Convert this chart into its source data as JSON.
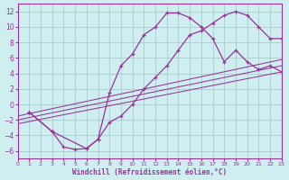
{
  "xlabel": "Windchill (Refroidissement éolien,°C)",
  "bg_color": "#ceeef0",
  "line_color": "#993399",
  "grid_color": "#aacccc",
  "xlim": [
    0,
    23
  ],
  "ylim": [
    -7,
    13
  ],
  "xticks": [
    0,
    1,
    2,
    3,
    4,
    5,
    6,
    7,
    8,
    9,
    10,
    11,
    12,
    13,
    14,
    15,
    16,
    17,
    18,
    19,
    20,
    21,
    22,
    23
  ],
  "yticks": [
    -6,
    -4,
    -2,
    0,
    2,
    4,
    6,
    8,
    10,
    12
  ],
  "curve1_x": [
    1,
    3,
    4,
    5,
    6,
    7,
    8,
    9,
    10,
    11,
    12,
    13,
    14,
    15,
    16,
    17,
    18,
    19,
    20,
    21,
    22,
    23
  ],
  "curve1_y": [
    -1,
    -3.5,
    -5.5,
    -5.8,
    -5.7,
    -4.5,
    -2.3,
    -1.5,
    0.0,
    2.0,
    3.5,
    5.0,
    7.0,
    9.0,
    9.5,
    10.5,
    11.5,
    12.0,
    11.5,
    10.0,
    8.5,
    8.5
  ],
  "curve2_x": [
    1,
    3,
    6,
    7,
    8,
    9,
    10,
    11,
    12,
    13,
    14,
    15,
    16,
    17,
    18,
    19,
    20,
    21,
    22,
    23
  ],
  "curve2_y": [
    -1,
    -3.5,
    -5.7,
    -4.5,
    1.5,
    5.0,
    6.5,
    9.0,
    10.0,
    11.8,
    11.8,
    11.2,
    10.0,
    8.5,
    5.5,
    7.0,
    5.5,
    4.5,
    5.0,
    4.2
  ],
  "line1_x": [
    0,
    23
  ],
  "line1_y": [
    -2.5,
    4.2
  ],
  "line2_x": [
    0,
    23
  ],
  "line2_y": [
    -2.0,
    5.0
  ],
  "line3_x": [
    0,
    23
  ],
  "line3_y": [
    -1.5,
    5.8
  ]
}
